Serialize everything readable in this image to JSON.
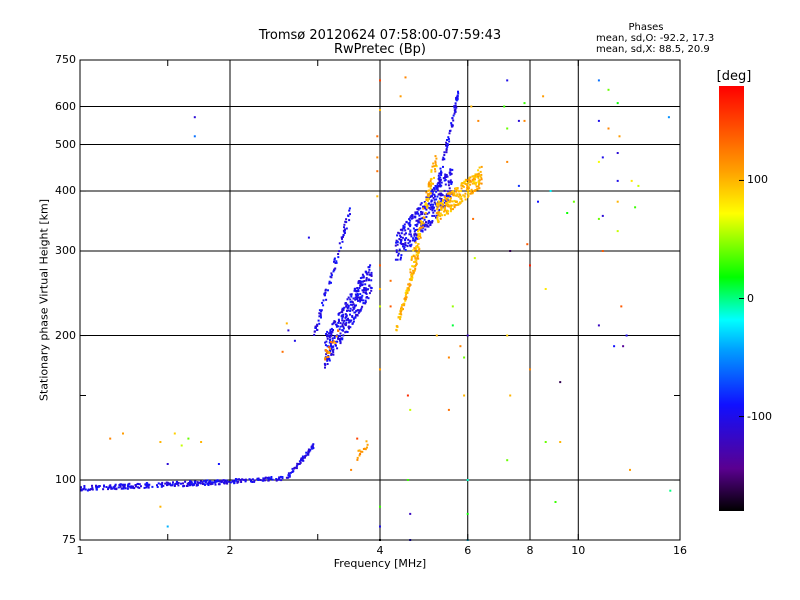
{
  "header": {
    "title_line1": "Tromsø 20120624 07:58:00-07:59:43",
    "title_line2": "RwPretec (Bp)",
    "phases_title": "Phases",
    "phase_o": "mean, sd,O:  -92.2, 17.3",
    "phase_x": "mean, sd,X:  88.5, 20.9"
  },
  "colorbar": {
    "title": "[deg]",
    "ticks": [
      "100",
      "0",
      "-100"
    ],
    "tick_values": [
      100,
      0,
      -100
    ],
    "range": [
      -180,
      180
    ]
  },
  "chart_data": {
    "type": "scatter",
    "xlabel": "Frequency [MHz]",
    "ylabel": "Stationary phase Virtual Height [km]",
    "xscale": "log",
    "yscale": "log",
    "xlim": [
      1,
      16
    ],
    "ylim": [
      75,
      750
    ],
    "x_ticks": [
      1,
      2,
      4,
      6,
      8,
      10,
      16
    ],
    "x_tick_labels": [
      "1",
      "2",
      "4",
      "6",
      "8",
      "10",
      "16"
    ],
    "x_minor_ticks": [
      1.5,
      3
    ],
    "y_ticks": [
      75,
      100,
      200,
      300,
      400,
      500,
      600,
      750
    ],
    "y_tick_labels": [
      "75",
      "100",
      "200",
      "300",
      "400",
      "500",
      "600",
      "750"
    ],
    "y_minor_ticks": [
      150
    ],
    "grid": true,
    "traces": [
      {
        "x_range": [
          1.0,
          1.9
        ],
        "height_start": 96,
        "height_end": 99,
        "phase": -100,
        "density": 220,
        "spread": 0.012
      },
      {
        "x_range": [
          1.9,
          2.6
        ],
        "height_start": 99,
        "height_end": 101,
        "phase": -100,
        "density": 80,
        "spread": 0.01
      },
      {
        "x_range": [
          2.6,
          2.95
        ],
        "height_start": 101,
        "height_end": 118,
        "phase": -100,
        "density": 60,
        "spread": 0.012
      },
      {
        "x_range": [
          2.95,
          3.5
        ],
        "height_start": 200,
        "height_end": 370,
        "phase": -100,
        "density": 80,
        "spread": 0.03
      },
      {
        "x_range": [
          3.1,
          3.85
        ],
        "height_start": 185,
        "height_end": 265,
        "phase": -100,
        "density": 320,
        "spread": 0.08
      },
      {
        "x_range": [
          4.3,
          5.6
        ],
        "height_start": 300,
        "height_end": 420,
        "phase": -100,
        "density": 320,
        "spread": 0.08
      },
      {
        "x_range": [
          5.2,
          5.75
        ],
        "height_start": 400,
        "height_end": 640,
        "phase": -100,
        "density": 80,
        "spread": 0.03
      },
      {
        "x_range": [
          4.3,
          4.8
        ],
        "height_start": 205,
        "height_end": 300,
        "phase": 100,
        "density": 80,
        "spread": 0.02
      },
      {
        "x_range": [
          4.6,
          5.2
        ],
        "height_start": 270,
        "height_end": 470,
        "phase": 100,
        "density": 110,
        "spread": 0.05
      },
      {
        "x_range": [
          5.2,
          6.4
        ],
        "height_start": 360,
        "height_end": 430,
        "phase": 100,
        "density": 230,
        "spread": 0.05
      },
      {
        "x_range": [
          3.1,
          3.3
        ],
        "height_start": 180,
        "height_end": 200,
        "phase": 120,
        "density": 20,
        "spread": 0.03
      },
      {
        "x_range": [
          3.6,
          3.8
        ],
        "height_start": 112,
        "height_end": 120,
        "phase": 110,
        "density": 14,
        "spread": 0.02
      }
    ],
    "scattered_points": [
      [
        1.15,
        122,
        120
      ],
      [
        1.22,
        125,
        110
      ],
      [
        1.45,
        120,
        100
      ],
      [
        1.55,
        125,
        90
      ],
      [
        1.6,
        118,
        60
      ],
      [
        1.65,
        122,
        40
      ],
      [
        1.75,
        120,
        100
      ],
      [
        1.5,
        108,
        -110
      ],
      [
        1.45,
        88,
        100
      ],
      [
        1.5,
        80,
        -40
      ],
      [
        1.9,
        108,
        -90
      ],
      [
        1.7,
        520,
        -60
      ],
      [
        1.7,
        570,
        -110
      ],
      [
        2.55,
        185,
        130
      ],
      [
        2.6,
        212,
        100
      ],
      [
        2.62,
        205,
        -110
      ],
      [
        2.7,
        195,
        -100
      ],
      [
        2.88,
        320,
        -100
      ],
      [
        3.5,
        105,
        120
      ],
      [
        3.6,
        122,
        150
      ],
      [
        4.0,
        88,
        30
      ],
      [
        4.0,
        80,
        -100
      ],
      [
        4.0,
        75,
        -180
      ],
      [
        3.95,
        440,
        130
      ],
      [
        3.95,
        470,
        120
      ],
      [
        3.95,
        390,
        100
      ],
      [
        4.0,
        590,
        100
      ],
      [
        4.0,
        680,
        150
      ],
      [
        3.95,
        520,
        130
      ],
      [
        4.0,
        170,
        110
      ],
      [
        4.0,
        230,
        60
      ],
      [
        4.0,
        250,
        100
      ],
      [
        4.0,
        280,
        140
      ],
      [
        4.4,
        630,
        110
      ],
      [
        4.5,
        690,
        120
      ],
      [
        4.2,
        230,
        140
      ],
      [
        4.2,
        260,
        130
      ],
      [
        4.55,
        150,
        160
      ],
      [
        4.6,
        140,
        60
      ],
      [
        4.55,
        100,
        30
      ],
      [
        4.6,
        85,
        -120
      ],
      [
        4.6,
        75,
        -100
      ],
      [
        5.2,
        200,
        100
      ],
      [
        5.5,
        180,
        120
      ],
      [
        5.5,
        140,
        130
      ],
      [
        5.6,
        230,
        50
      ],
      [
        5.6,
        210,
        10
      ],
      [
        5.8,
        190,
        120
      ],
      [
        5.9,
        180,
        40
      ],
      [
        5.9,
        150,
        100
      ],
      [
        6.0,
        100,
        -10
      ],
      [
        6.0,
        85,
        20
      ],
      [
        6.0,
        75,
        -30
      ],
      [
        6.1,
        600,
        100
      ],
      [
        6.3,
        560,
        120
      ],
      [
        6.2,
        400,
        110
      ],
      [
        6.15,
        350,
        130
      ],
      [
        6.2,
        290,
        60
      ],
      [
        6.0,
        200,
        -120
      ],
      [
        7.2,
        680,
        -100
      ],
      [
        7.1,
        600,
        30
      ],
      [
        7.2,
        540,
        40
      ],
      [
        7.2,
        460,
        120
      ],
      [
        7.3,
        300,
        -160
      ],
      [
        7.2,
        200,
        90
      ],
      [
        7.3,
        150,
        100
      ],
      [
        7.2,
        110,
        40
      ],
      [
        7.6,
        410,
        -80
      ],
      [
        7.8,
        610,
        30
      ],
      [
        7.8,
        560,
        120
      ],
      [
        7.9,
        310,
        140
      ],
      [
        8.0,
        280,
        165
      ],
      [
        8.0,
        170,
        120
      ],
      [
        8.3,
        380,
        -90
      ],
      [
        8.5,
        630,
        110
      ],
      [
        8.6,
        250,
        80
      ],
      [
        8.6,
        120,
        40
      ],
      [
        9.2,
        160,
        -160
      ],
      [
        9.2,
        120,
        100
      ],
      [
        9.0,
        90,
        30
      ],
      [
        9.5,
        360,
        20
      ],
      [
        9.8,
        380,
        40
      ],
      [
        11.0,
        680,
        -60
      ],
      [
        11.0,
        560,
        -100
      ],
      [
        11.2,
        300,
        140
      ],
      [
        11.0,
        210,
        -120
      ],
      [
        11.5,
        540,
        120
      ],
      [
        11.2,
        470,
        -100
      ],
      [
        11.0,
        460,
        70
      ],
      [
        11.2,
        355,
        -110
      ],
      [
        11.5,
        650,
        40
      ],
      [
        12.0,
        610,
        20
      ],
      [
        12.0,
        480,
        -110
      ],
      [
        12.0,
        420,
        -100
      ],
      [
        12.0,
        380,
        100
      ],
      [
        12.1,
        520,
        110
      ],
      [
        11.8,
        190,
        -90
      ],
      [
        12.3,
        190,
        -140
      ],
      [
        12.2,
        230,
        140
      ],
      [
        12.5,
        200,
        -100
      ],
      [
        12.7,
        105,
        110
      ],
      [
        13.0,
        370,
        30
      ],
      [
        13.2,
        410,
        60
      ],
      [
        15.2,
        570,
        -50
      ],
      [
        15.3,
        95,
        0
      ],
      [
        12.8,
        420,
        80
      ],
      [
        11.0,
        350,
        40
      ],
      [
        7.6,
        560,
        -110
      ],
      [
        8.8,
        400,
        -20
      ],
      [
        12.0,
        330,
        60
      ]
    ]
  }
}
